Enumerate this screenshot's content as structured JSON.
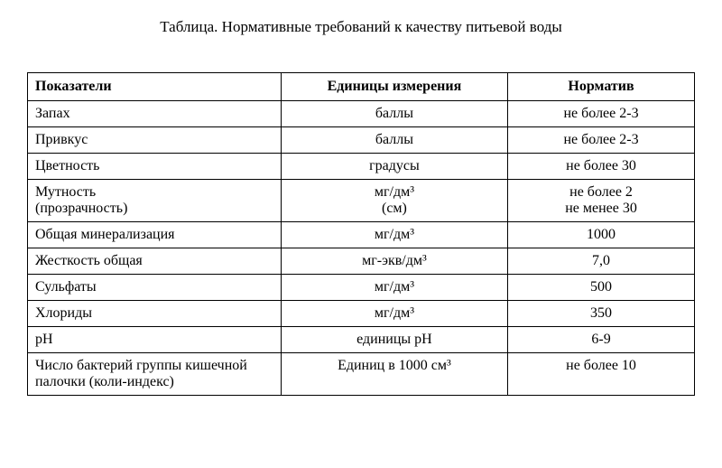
{
  "title": "Таблица. Нормативные требований к качеству питьевой воды",
  "table": {
    "type": "table",
    "columns": [
      {
        "label": "Показатели",
        "align": "left",
        "width_pct": 38
      },
      {
        "label": "Единицы измерения",
        "align": "center",
        "width_pct": 34
      },
      {
        "label": "Норматив",
        "align": "center",
        "width_pct": 28
      }
    ],
    "rows": [
      {
        "indicator": "Запах",
        "unit": "баллы",
        "standard": "не более 2-3"
      },
      {
        "indicator": "Привкус",
        "unit": "баллы",
        "standard": "не более 2-3"
      },
      {
        "indicator": "Цветность",
        "unit": "градусы",
        "standard": "не более 30"
      },
      {
        "indicator": "Мутность\n(прозрачность)",
        "unit": "мг/дм³\n(см)",
        "standard": "не более 2\nне менее 30"
      },
      {
        "indicator": "Общая минерализация",
        "unit": "мг/дм³",
        "standard": "1000"
      },
      {
        "indicator": "Жесткость общая",
        "unit": "мг-экв/дм³",
        "standard": "7,0"
      },
      {
        "indicator": "Сульфаты",
        "unit": "мг/дм³",
        "standard": "500"
      },
      {
        "indicator": "Хлориды",
        "unit": "мг/дм³",
        "standard": "350"
      },
      {
        "indicator": "рН",
        "unit": "единицы рН",
        "standard": "6-9"
      },
      {
        "indicator": " Число бактерий группы кишечной палочки (коли-индекс)",
        "unit": "Единиц в 1000 см³",
        "standard": "не более 10"
      }
    ],
    "border_color": "#000000",
    "background_color": "#ffffff",
    "font_family": "Times New Roman",
    "font_size_pt": 12,
    "header_font_weight": "bold"
  }
}
